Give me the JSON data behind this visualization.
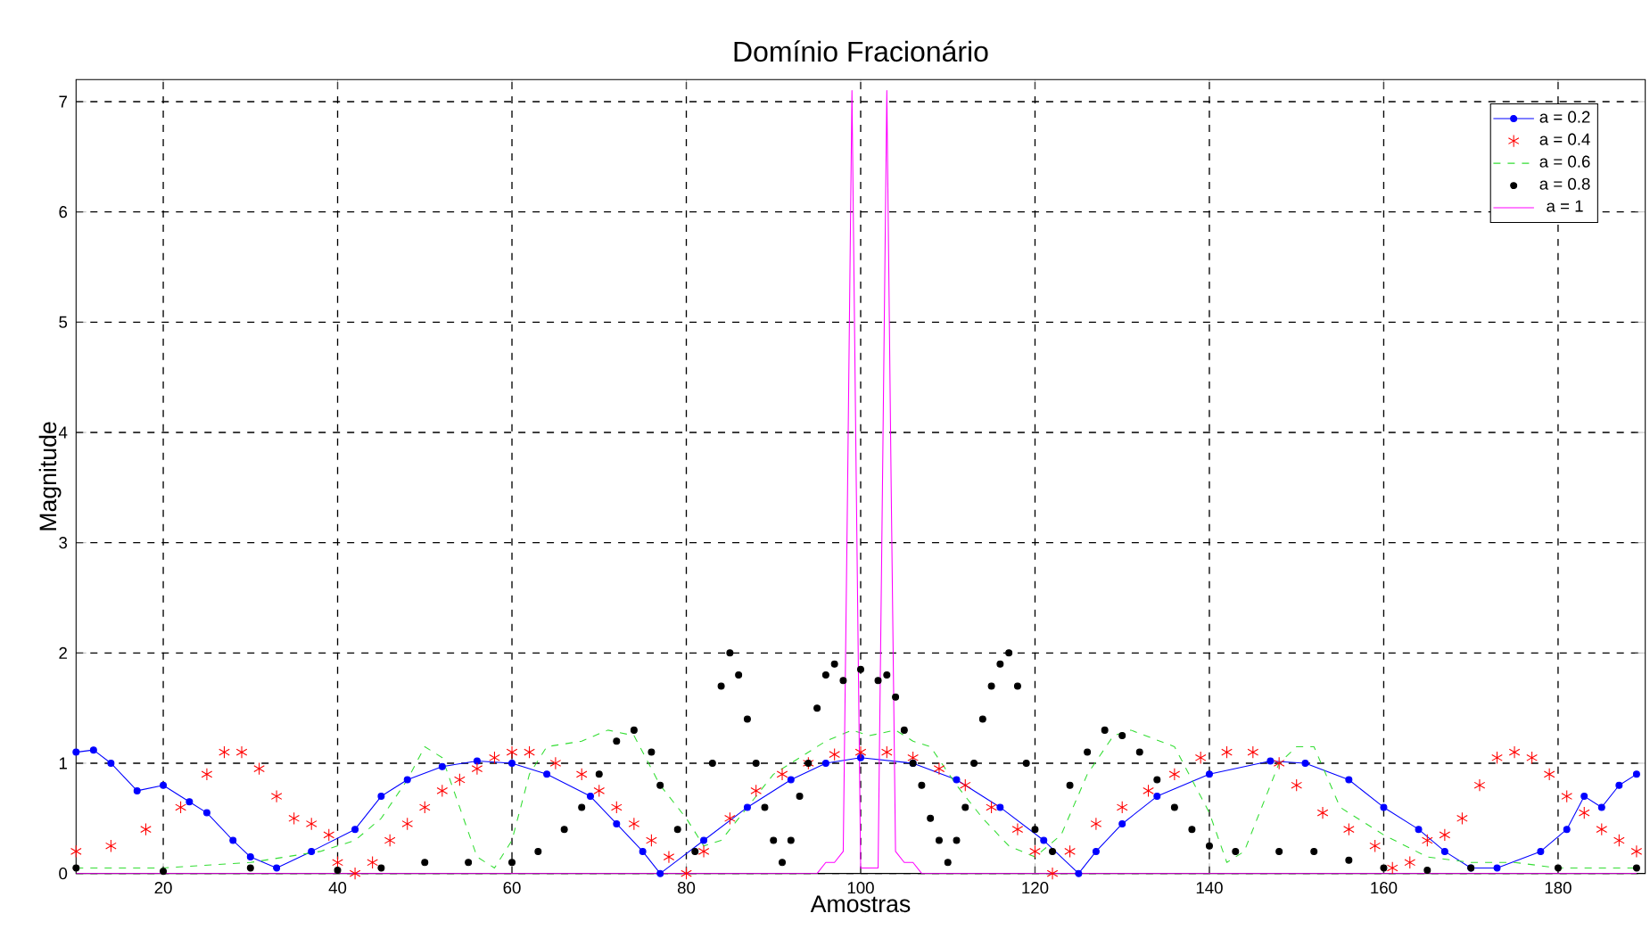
{
  "chart_data": {
    "type": "line",
    "title": "Domínio Fracionário",
    "xlabel": "Amostras",
    "ylabel": "Magnitude",
    "xlim": [
      10,
      190
    ],
    "ylim": [
      0,
      7.2
    ],
    "xticks": [
      20,
      40,
      60,
      80,
      100,
      120,
      140,
      160,
      180
    ],
    "yticks": [
      0,
      1,
      2,
      3,
      4,
      5,
      6,
      7
    ],
    "grid": true,
    "legend": "top right",
    "series": [
      {
        "name": "a = 0.2",
        "color": "#0000ff",
        "marker": "circle",
        "line_style": "solid",
        "x": [
          10,
          12,
          14,
          17,
          20,
          23,
          25,
          28,
          30,
          33,
          37,
          42,
          45,
          48,
          52,
          56,
          60,
          64,
          69,
          72,
          75,
          77,
          82,
          87,
          92,
          96,
          100,
          106,
          111,
          116,
          121,
          125,
          127,
          130,
          134,
          140,
          147,
          151,
          156,
          160,
          164,
          167,
          170,
          173,
          178,
          181,
          183,
          185,
          187,
          189
        ],
        "values": [
          1.1,
          1.12,
          1.0,
          0.75,
          0.8,
          0.65,
          0.55,
          0.3,
          0.15,
          0.05,
          0.2,
          0.4,
          0.7,
          0.85,
          0.97,
          1.02,
          1.0,
          0.9,
          0.7,
          0.45,
          0.2,
          0.0,
          0.3,
          0.6,
          0.85,
          1.0,
          1.05,
          1.0,
          0.85,
          0.6,
          0.3,
          0.0,
          0.2,
          0.45,
          0.7,
          0.9,
          1.02,
          1.0,
          0.85,
          0.6,
          0.4,
          0.2,
          0.05,
          0.05,
          0.2,
          0.4,
          0.7,
          0.6,
          0.8,
          0.9
        ]
      },
      {
        "name": "a = 0.4",
        "color": "#ff0000",
        "type": "scatter",
        "marker": "cross",
        "x": [
          10,
          14,
          18,
          22,
          25,
          27,
          29,
          31,
          33,
          35,
          37,
          39,
          40,
          42,
          44,
          46,
          48,
          50,
          52,
          54,
          56,
          58,
          60,
          62,
          65,
          68,
          70,
          72,
          74,
          76,
          78,
          80,
          82,
          85,
          88,
          91,
          94,
          97,
          100,
          103,
          106,
          109,
          112,
          115,
          118,
          120,
          122,
          124,
          127,
          130,
          133,
          136,
          139,
          142,
          145,
          148,
          150,
          153,
          156,
          159,
          161,
          163,
          165,
          167,
          169,
          171,
          173,
          175,
          177,
          179,
          181,
          183,
          185,
          187,
          189
        ],
        "values": [
          0.2,
          0.25,
          0.4,
          0.6,
          0.9,
          1.1,
          1.1,
          0.95,
          0.7,
          0.5,
          0.45,
          0.35,
          0.1,
          0.0,
          0.1,
          0.3,
          0.45,
          0.6,
          0.75,
          0.85,
          0.95,
          1.05,
          1.1,
          1.1,
          1.0,
          0.9,
          0.75,
          0.6,
          0.45,
          0.3,
          0.15,
          0.0,
          0.2,
          0.5,
          0.75,
          0.9,
          1.0,
          1.08,
          1.1,
          1.1,
          1.05,
          0.95,
          0.8,
          0.6,
          0.4,
          0.2,
          0.0,
          0.2,
          0.45,
          0.6,
          0.75,
          0.9,
          1.05,
          1.1,
          1.1,
          1.0,
          0.8,
          0.55,
          0.4,
          0.25,
          0.05,
          0.1,
          0.3,
          0.35,
          0.5,
          0.8,
          1.05,
          1.1,
          1.05,
          0.9,
          0.7,
          0.55,
          0.4,
          0.3,
          0.2
        ]
      },
      {
        "name": "a = 0.6",
        "color": "#33dd33",
        "marker": "none",
        "line_style": "dashed",
        "x": [
          10,
          20,
          30,
          38,
          42,
          45,
          48,
          50,
          52,
          54,
          56,
          58,
          60,
          62,
          64,
          68,
          71,
          74,
          77,
          80,
          82,
          84,
          87,
          90,
          93,
          96,
          99,
          101,
          104,
          106,
          108,
          111,
          114,
          117,
          120,
          123,
          126,
          129,
          131,
          136,
          140,
          142,
          144,
          146,
          148,
          150,
          152,
          155,
          160,
          165,
          170,
          175,
          180,
          189
        ],
        "values": [
          0.05,
          0.05,
          0.1,
          0.2,
          0.3,
          0.5,
          0.85,
          1.15,
          1.05,
          0.6,
          0.15,
          0.05,
          0.3,
          0.9,
          1.15,
          1.2,
          1.3,
          1.25,
          0.8,
          0.5,
          0.25,
          0.3,
          0.6,
          0.9,
          1.05,
          1.2,
          1.3,
          1.25,
          1.3,
          1.2,
          1.15,
          0.8,
          0.5,
          0.25,
          0.15,
          0.35,
          0.9,
          1.25,
          1.3,
          1.15,
          0.55,
          0.1,
          0.2,
          0.6,
          1.0,
          1.15,
          1.15,
          0.6,
          0.35,
          0.15,
          0.1,
          0.1,
          0.05,
          0.05
        ]
      },
      {
        "name": "a = 0.8",
        "color": "#000000",
        "type": "scatter",
        "marker": "circle",
        "x": [
          10,
          20,
          30,
          40,
          45,
          50,
          55,
          60,
          63,
          66,
          68,
          70,
          72,
          74,
          76,
          77,
          79,
          81,
          83,
          84,
          85,
          86,
          87,
          88,
          89,
          90,
          91,
          92,
          93,
          94,
          95,
          96,
          97,
          98,
          100,
          102,
          103,
          104,
          105,
          106,
          107,
          108,
          109,
          110,
          111,
          112,
          113,
          114,
          115,
          116,
          117,
          118,
          119,
          120,
          122,
          124,
          126,
          128,
          130,
          132,
          134,
          136,
          138,
          140,
          143,
          148,
          152,
          156,
          160,
          165,
          170,
          180,
          189
        ],
        "values": [
          0.05,
          0.02,
          0.05,
          0.03,
          0.05,
          0.1,
          0.1,
          0.1,
          0.2,
          0.4,
          0.6,
          0.9,
          1.2,
          1.3,
          1.1,
          0.8,
          0.4,
          0.2,
          1.0,
          1.7,
          2.0,
          1.8,
          1.4,
          1.0,
          0.6,
          0.3,
          0.1,
          0.3,
          0.7,
          1.0,
          1.5,
          1.8,
          1.9,
          1.75,
          1.85,
          1.75,
          1.8,
          1.6,
          1.3,
          1.0,
          0.8,
          0.5,
          0.3,
          0.1,
          0.3,
          0.6,
          1.0,
          1.4,
          1.7,
          1.9,
          2.0,
          1.7,
          1.0,
          0.4,
          0.2,
          0.8,
          1.1,
          1.3,
          1.25,
          1.1,
          0.85,
          0.6,
          0.4,
          0.25,
          0.2,
          0.2,
          0.2,
          0.12,
          0.05,
          0.03,
          0.05,
          0.05,
          0.05
        ]
      },
      {
        "name": "a = 1",
        "color": "#ff00ff",
        "marker": "none",
        "line_style": "solid",
        "x": [
          10,
          95,
          96,
          97,
          98,
          98.5,
          99,
          99.5,
          100,
          101,
          102,
          102.5,
          103,
          103.5,
          104,
          105,
          106,
          107,
          189
        ],
        "values": [
          0,
          0,
          0.1,
          0.1,
          0.2,
          3.5,
          7.1,
          3.5,
          0.05,
          0.05,
          0.05,
          3.5,
          7.1,
          3.5,
          0.2,
          0.1,
          0.1,
          0,
          0
        ]
      }
    ]
  }
}
